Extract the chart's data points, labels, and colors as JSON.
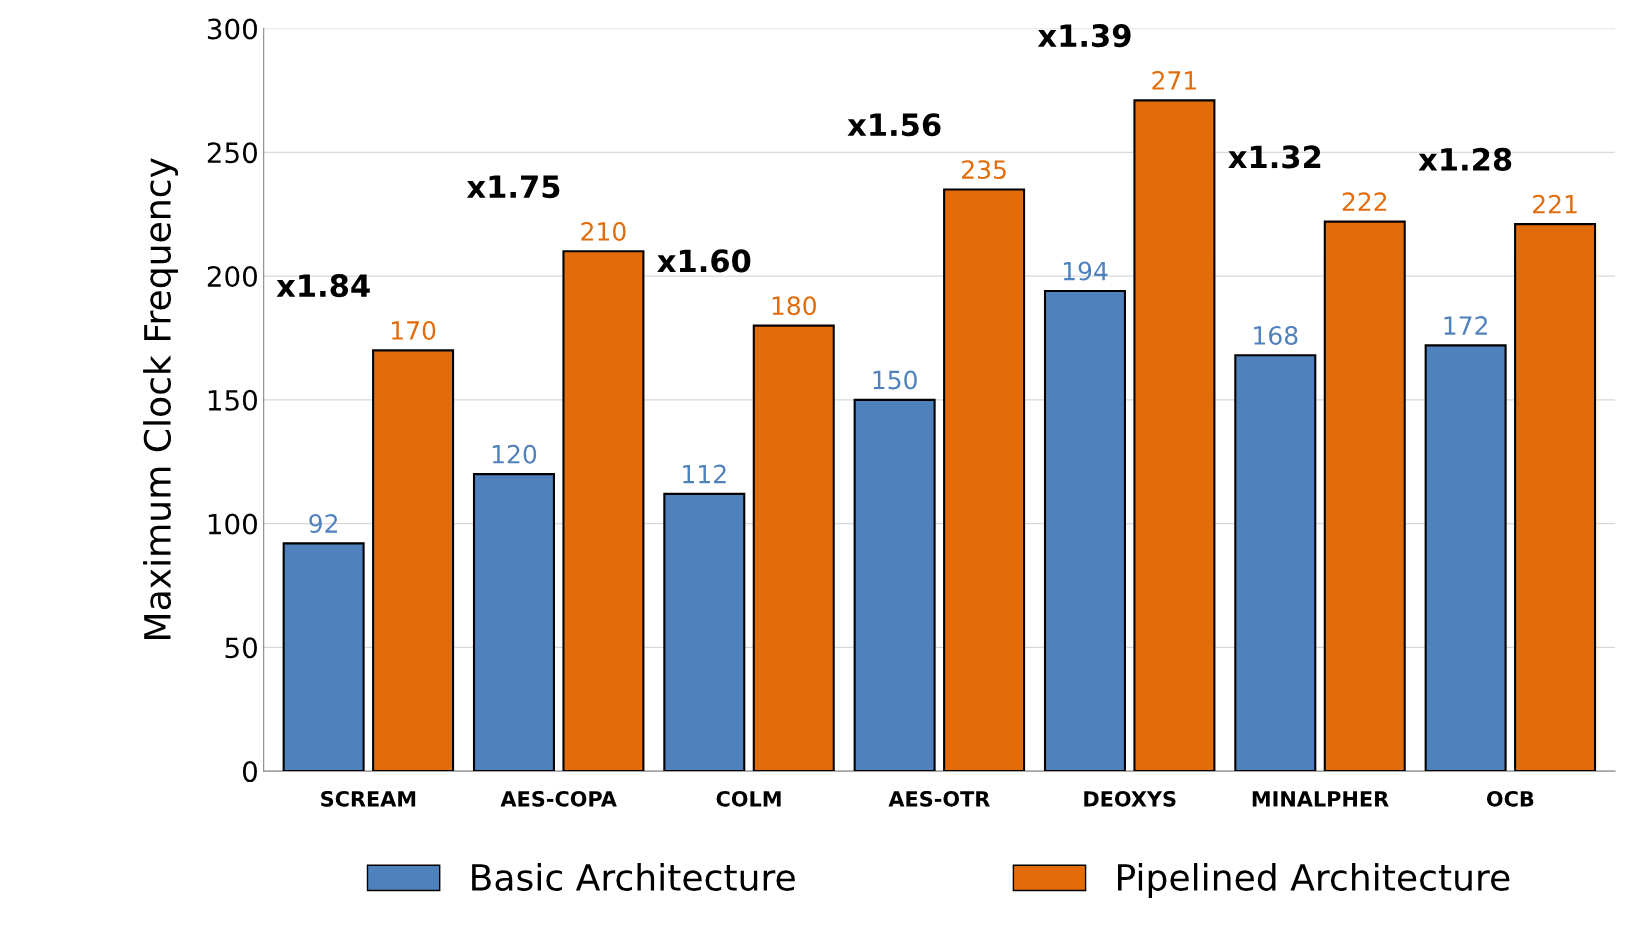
{
  "chart_data": {
    "type": "bar",
    "ylabel": "Maximum Clock Frequency",
    "categories": [
      "SCREAM",
      "AES-COPA",
      "COLM",
      "AES-OTR",
      "DEOXYS",
      "MINALPHER",
      "OCB"
    ],
    "series": [
      {
        "name": "Basic Architecture",
        "color": "#4f81bd",
        "values": [
          92,
          120,
          112,
          150,
          194,
          168,
          172
        ]
      },
      {
        "name": "Pipelined Architecture",
        "color": "#e36c0a",
        "values": [
          170,
          210,
          180,
          235,
          271,
          222,
          221
        ]
      }
    ],
    "ylim": [
      0,
      300
    ],
    "yticks": [
      0,
      50,
      100,
      150,
      200,
      250,
      300
    ],
    "grid": "y",
    "legend": "bottom",
    "data_labels": true,
    "annotations": [
      "x1.84",
      "x1.75",
      "x1.60",
      "x1.56",
      "x1.39",
      "x1.32",
      "x1.28"
    ]
  }
}
